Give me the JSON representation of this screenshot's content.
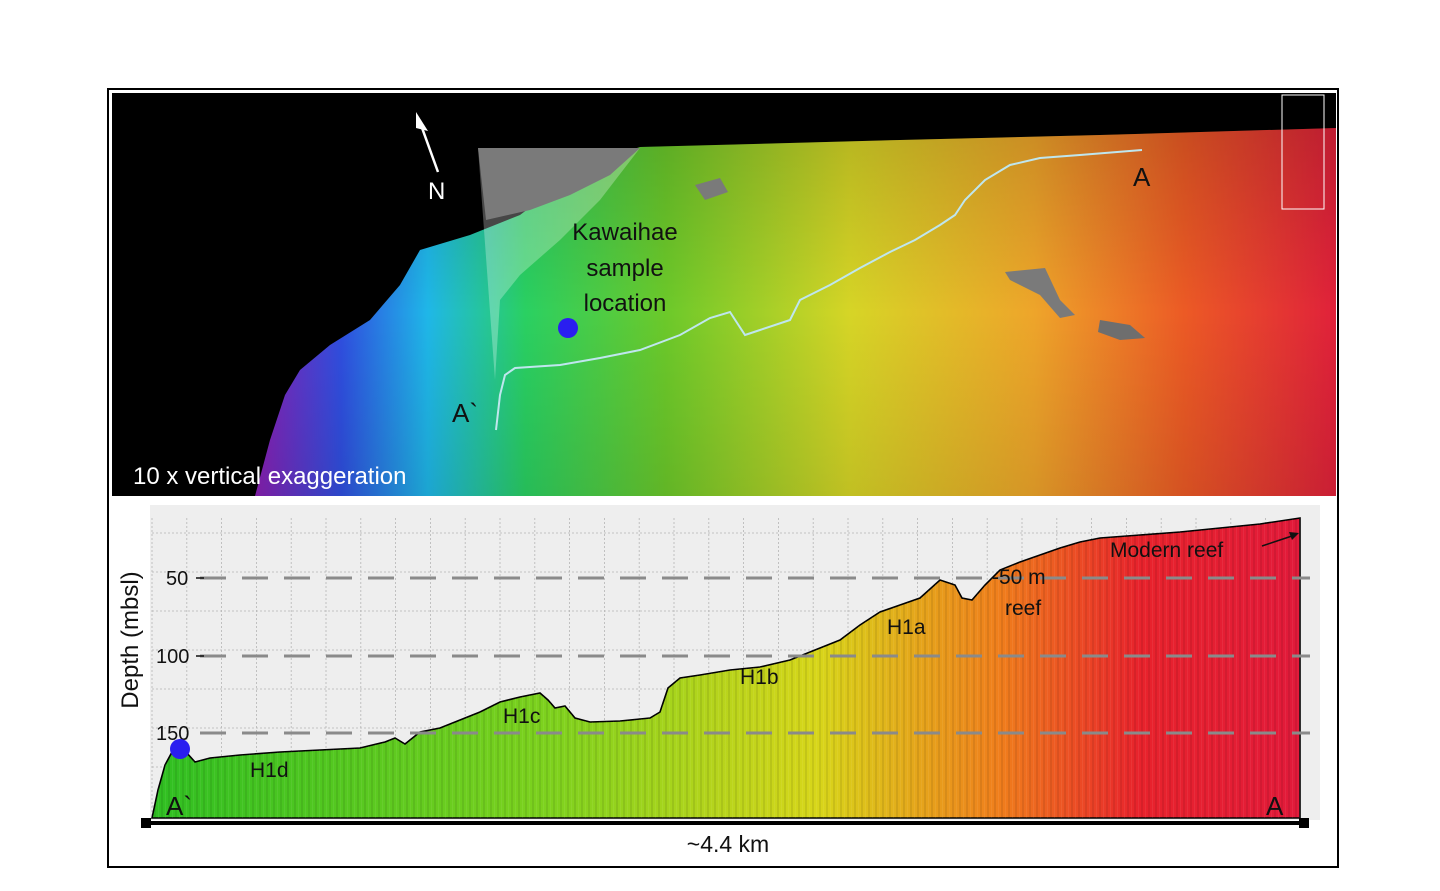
{
  "map": {
    "north_label": "N",
    "endpoint_a": "A",
    "endpoint_a_prime": "A`",
    "sample_label_lines": [
      "Kawaihae",
      "sample",
      "location"
    ],
    "exaggeration_note": "10 x vertical exaggeration",
    "sample_marker_color": "#2a1ef0",
    "track_color": "#bfe6ee"
  },
  "profile": {
    "ylabel": "Depth (mbsl)",
    "depth_ticks": [
      "50",
      "100",
      "150"
    ],
    "terrace_labels": {
      "h1d": "H1d",
      "h1c": "H1c",
      "h1b": "H1b",
      "h1a": "H1a",
      "reef50_line1": "-50 m",
      "reef50_line2": "reef",
      "modern_reef": "Modern reef"
    },
    "endpoint_a_prime": "A`",
    "endpoint_a": "A",
    "distance_label": "~4.4 km",
    "gradient_colors": [
      "#2fbf22",
      "#7fd21e",
      "#d8d61a",
      "#f07d1c",
      "#e8232c",
      "#e21a3a"
    ]
  }
}
